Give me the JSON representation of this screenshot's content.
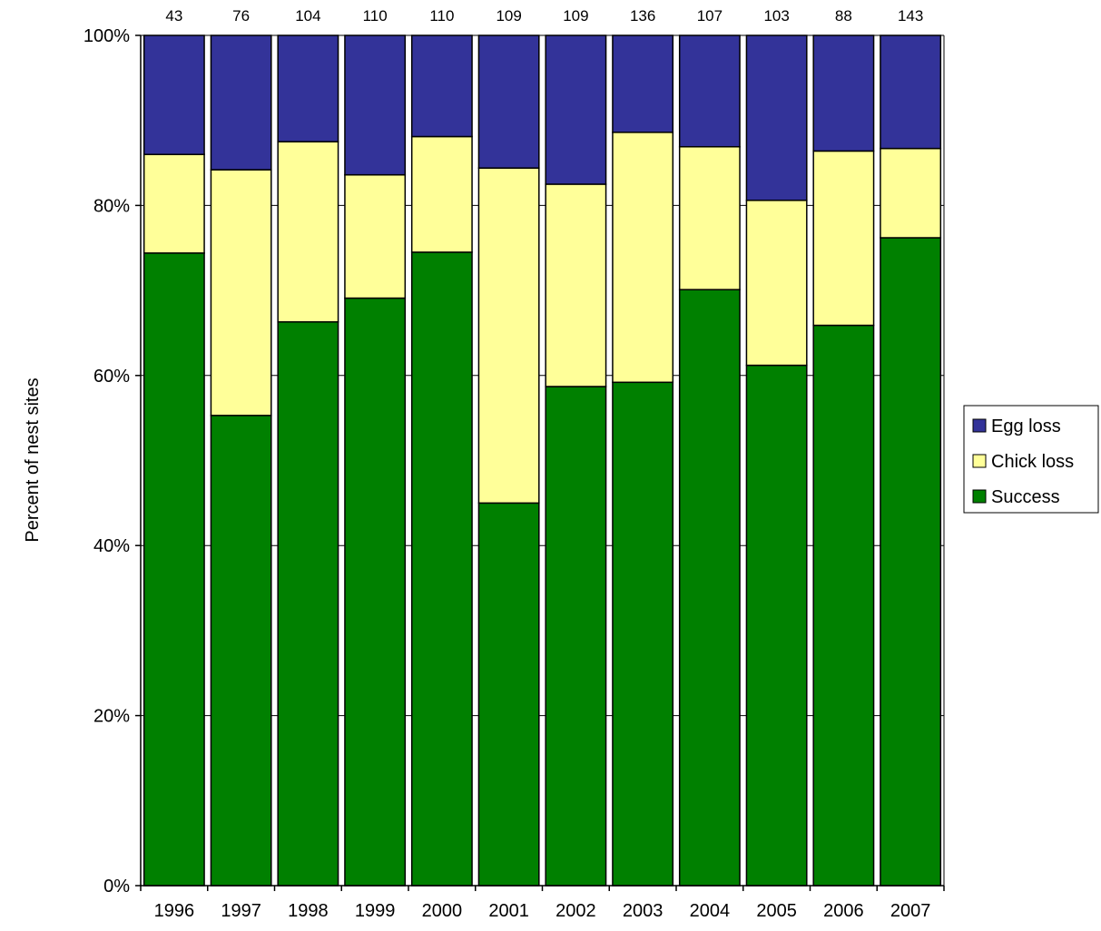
{
  "chart_data": {
    "type": "bar",
    "stacked": true,
    "title": "",
    "xlabel": "",
    "ylabel": "Percent of nest sites",
    "ylim": [
      0,
      100
    ],
    "y_ticks": [
      "0%",
      "20%",
      "40%",
      "60%",
      "80%",
      "100%"
    ],
    "y_tick_values": [
      0,
      20,
      40,
      60,
      80,
      100
    ],
    "categories": [
      "1996",
      "1997",
      "1998",
      "1999",
      "2000",
      "2001",
      "2002",
      "2003",
      "2004",
      "2005",
      "2006",
      "2007"
    ],
    "top_labels": [
      "43",
      "76",
      "104",
      "110",
      "110",
      "109",
      "109",
      "136",
      "107",
      "103",
      "88",
      "143"
    ],
    "series": [
      {
        "name": "Success",
        "color": "#008000",
        "values": [
          74.4,
          55.3,
          66.3,
          69.1,
          74.5,
          45.0,
          58.7,
          59.2,
          70.1,
          61.2,
          65.9,
          76.2
        ]
      },
      {
        "name": "Chick loss",
        "color": "#FFFF99",
        "values": [
          11.6,
          28.9,
          21.2,
          14.5,
          13.6,
          39.4,
          23.8,
          29.4,
          16.8,
          19.4,
          20.5,
          10.5
        ]
      },
      {
        "name": "Egg loss",
        "color": "#333399",
        "values": [
          14.0,
          15.8,
          12.5,
          16.4,
          11.9,
          15.6,
          17.5,
          11.4,
          13.1,
          19.4,
          13.6,
          13.3
        ]
      }
    ],
    "legend_order": [
      "Egg loss",
      "Chick loss",
      "Success"
    ],
    "legend_position": "right",
    "grid": true
  }
}
